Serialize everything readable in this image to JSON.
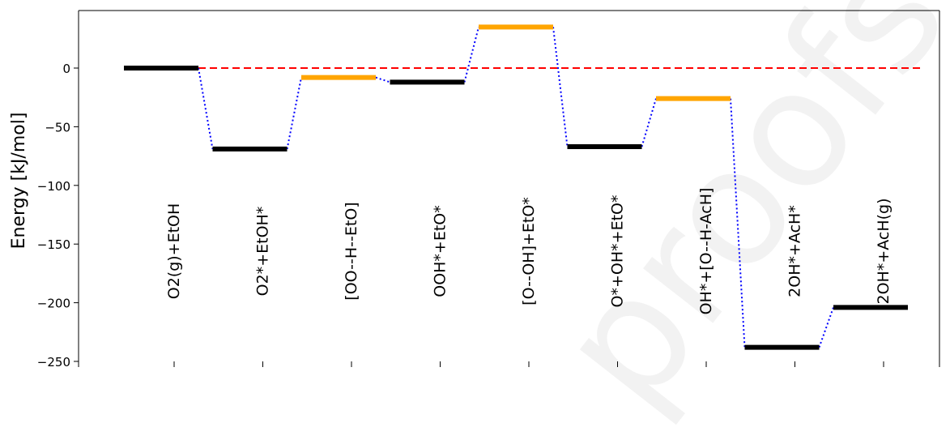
{
  "chart_data": {
    "type": "line",
    "title": "",
    "xlabel": "",
    "ylabel": "Energy [kJ/mol]",
    "ylim": [
      -250,
      40
    ],
    "yticks": [
      0,
      -50,
      -100,
      -150,
      -200,
      -250
    ],
    "ytick_labels": [
      "0",
      "−50",
      "−100",
      "−150",
      "−200",
      "−250"
    ],
    "grid": false,
    "reference_line": {
      "y": 0,
      "color": "#ff0000",
      "style": "dashed"
    },
    "connector_color": "#0000ff",
    "colors": {
      "minimum": "#000000",
      "transition_state": "#ffa500"
    },
    "states": [
      {
        "label": "O2(g)+EtOH",
        "energy": 0,
        "kind": "minimum"
      },
      {
        "label": "O2*+EtOH*",
        "energy": -69,
        "kind": "minimum"
      },
      {
        "label": "[OO--H--EtO]",
        "energy": -8,
        "kind": "transition_state"
      },
      {
        "label": "OOH*+EtO*",
        "energy": -12,
        "kind": "minimum"
      },
      {
        "label": "[O--OH]+EtO*",
        "energy": 35,
        "kind": "transition_state"
      },
      {
        "label": "O*+OH*+EtO*",
        "energy": -67,
        "kind": "minimum"
      },
      {
        "label": "OH*+[O--H-AcH]",
        "energy": -26,
        "kind": "transition_state"
      },
      {
        "label": "2OH*+AcH*",
        "energy": -238,
        "kind": "minimum"
      },
      {
        "label": "2OH*+AcH(g)",
        "energy": -204,
        "kind": "minimum"
      }
    ]
  }
}
